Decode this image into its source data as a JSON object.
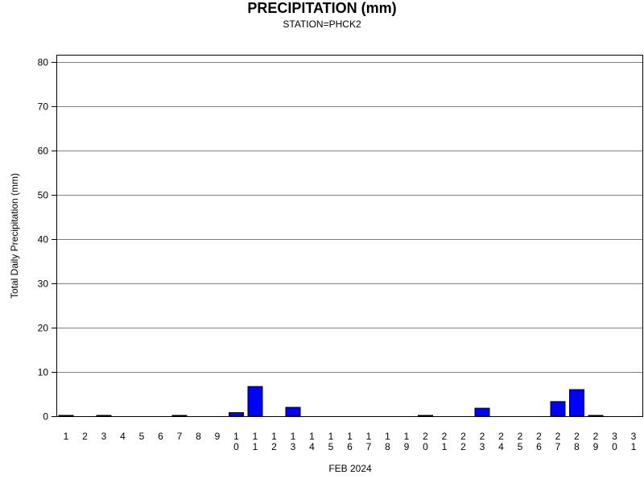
{
  "chart_data": {
    "type": "bar",
    "title": "PRECIPITATION (mm)",
    "subtitle": "STATION=PHCK2",
    "xlabel": "FEB 2024",
    "ylabel": "Total Daily Precipitation (mm)",
    "ylim": [
      0,
      80
    ],
    "yticks": [
      0,
      10,
      20,
      30,
      40,
      50,
      60,
      70,
      80
    ],
    "grid": true,
    "bar_color": "#0000ff",
    "categories": [
      "1",
      "2",
      "3",
      "4",
      "5",
      "6",
      "7",
      "8",
      "9",
      "10",
      "11",
      "12",
      "13",
      "14",
      "15",
      "16",
      "17",
      "18",
      "19",
      "20",
      "21",
      "22",
      "23",
      "24",
      "25",
      "26",
      "27",
      "28",
      "29",
      "30",
      "31"
    ],
    "values": [
      0.1,
      0,
      0.1,
      0,
      0,
      0,
      0.1,
      0,
      0,
      0.8,
      6.7,
      0,
      2.0,
      0,
      0,
      0,
      0,
      0,
      0,
      0.1,
      0,
      0,
      1.8,
      0,
      0,
      0,
      3.3,
      6.0,
      0.1,
      0,
      0
    ]
  }
}
